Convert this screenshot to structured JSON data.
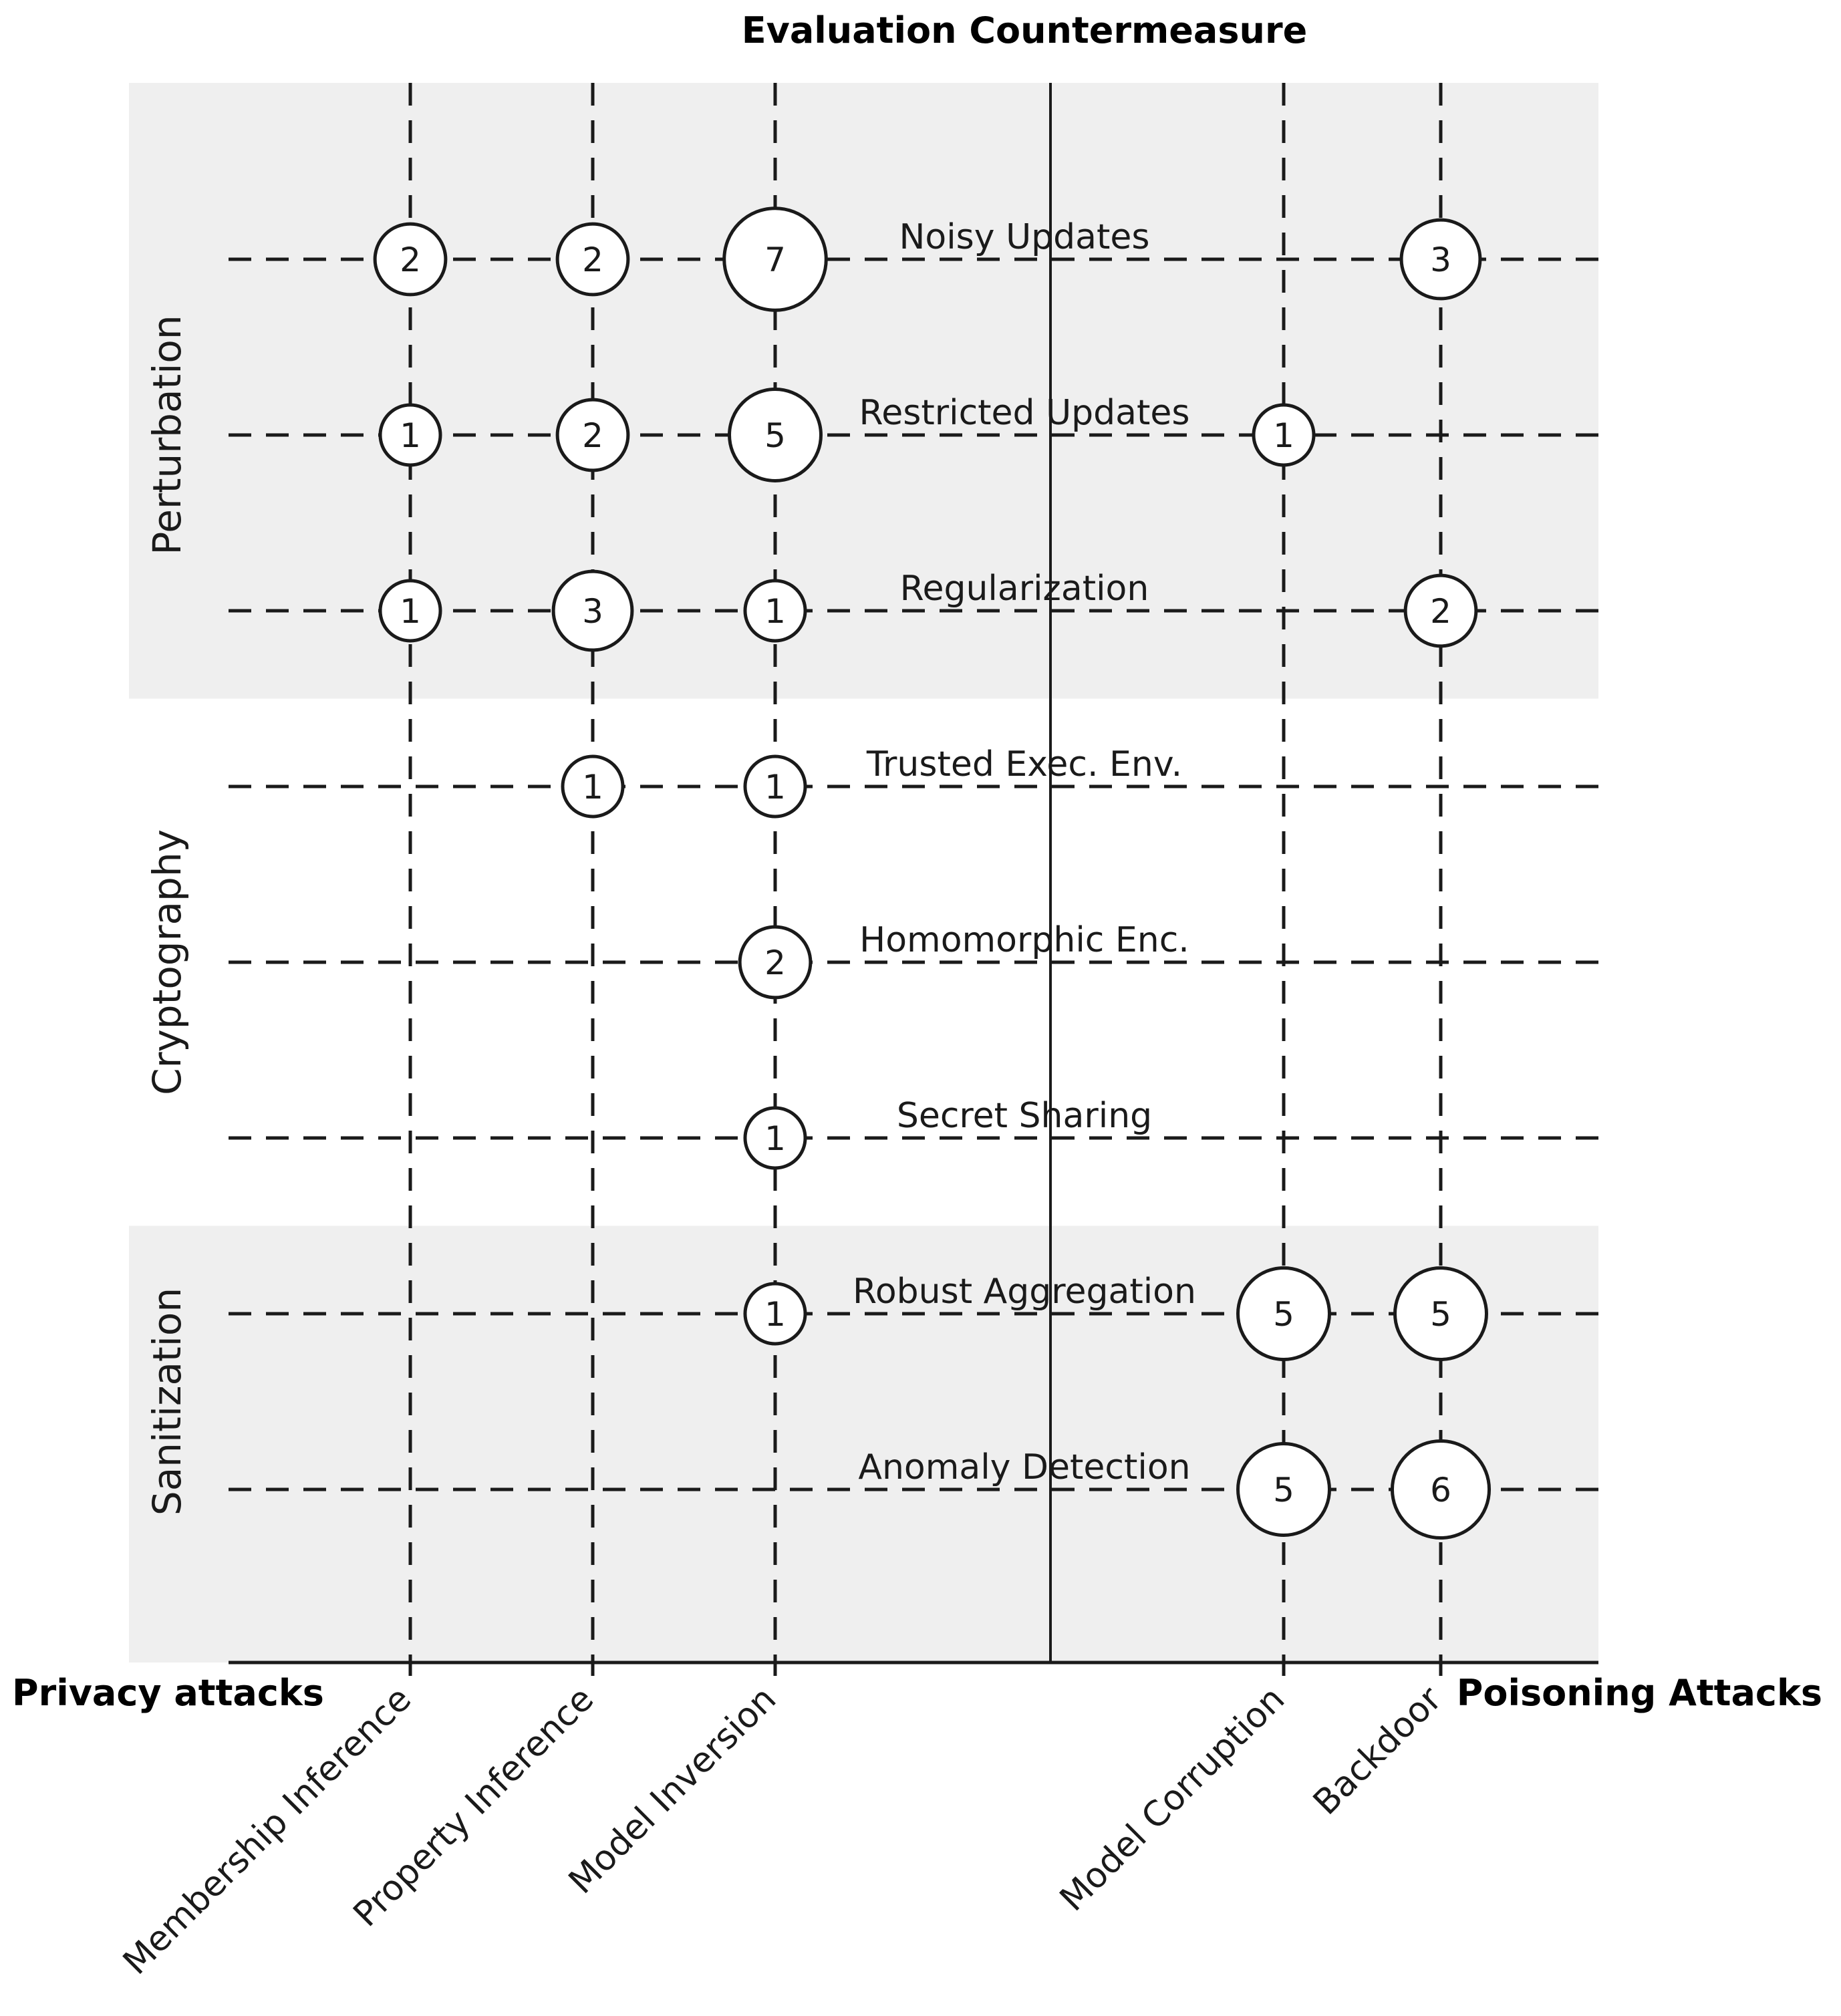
{
  "chart_data": {
    "type": "bubble-matrix",
    "title": "Evaluation Countermeasure",
    "left_axis_label": "Privacy attacks",
    "right_axis_label": "Poisoning Attacks",
    "columns": [
      {
        "label": "Membership Inference",
        "side": "privacy"
      },
      {
        "label": "Property Inference",
        "side": "privacy"
      },
      {
        "label": "Model Inversion",
        "side": "privacy"
      },
      {
        "label": "Model Corruption",
        "side": "poisoning"
      },
      {
        "label": "Backdoor",
        "side": "poisoning"
      }
    ],
    "groups": [
      {
        "label": "Perturbation",
        "shaded": true,
        "rows": [
          "Noisy Updates",
          "Restricted Updates",
          "Regularization"
        ]
      },
      {
        "label": "Cryptography",
        "shaded": false,
        "rows": [
          "Trusted Exec. Env.",
          "Homomorphic Enc.",
          "Secret Sharing"
        ]
      },
      {
        "label": "Sanitization",
        "shaded": true,
        "rows": [
          "Robust Aggregation",
          "Anomaly Detection"
        ]
      }
    ],
    "rows": [
      "Noisy Updates",
      "Restricted Updates",
      "Regularization",
      "Trusted Exec. Env.",
      "Homomorphic Enc.",
      "Secret Sharing",
      "Robust Aggregation",
      "Anomaly Detection"
    ],
    "values": [
      [
        2,
        2,
        7,
        null,
        3
      ],
      [
        1,
        2,
        5,
        1,
        null
      ],
      [
        1,
        3,
        1,
        null,
        2
      ],
      [
        null,
        1,
        1,
        null,
        null
      ],
      [
        null,
        null,
        2,
        null,
        null
      ],
      [
        null,
        null,
        1,
        null,
        null
      ],
      [
        null,
        null,
        1,
        5,
        5
      ],
      [
        null,
        null,
        null,
        5,
        6
      ]
    ],
    "colors": {
      "band": "#efefef",
      "ink": "#1a1a1a",
      "bubble_fill": "#ffffff"
    }
  }
}
